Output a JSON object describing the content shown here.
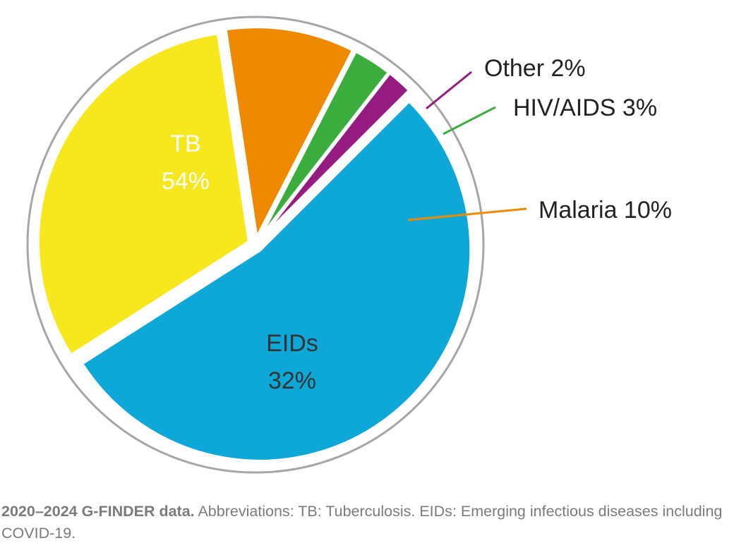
{
  "chart_data": {
    "type": "pie",
    "slices": [
      {
        "label": "TB",
        "value": 54,
        "value_label": "54%",
        "color": "#0ea8d8",
        "label_style": "inside",
        "label_color": "#ffffff"
      },
      {
        "label": "EIDs",
        "value": 32,
        "value_label": "32%",
        "color": "#f6e81c",
        "label_style": "inside",
        "label_color": "#333333"
      },
      {
        "label": "Malaria",
        "value": 10,
        "value_label": "10%",
        "color": "#ef8a00",
        "label_style": "callout",
        "callout_text": "Malaria 10%"
      },
      {
        "label": "HIV/AIDS",
        "value": 3,
        "value_label": "3%",
        "color": "#3aad3c",
        "label_style": "callout",
        "callout_text": "HIV/AIDS 3%"
      },
      {
        "label": "Other",
        "value": 2,
        "value_label": "2%",
        "color": "#951b81",
        "label_style": "callout",
        "callout_text": "Other 2%"
      }
    ],
    "outer_ring_color": "#a6a6a6"
  },
  "caption": {
    "lead": "2020–2024 G-FINDER data.",
    "text": " Abbreviations: TB: Tuberculosis. EIDs: Emerging infectious diseases including COVID-19."
  }
}
